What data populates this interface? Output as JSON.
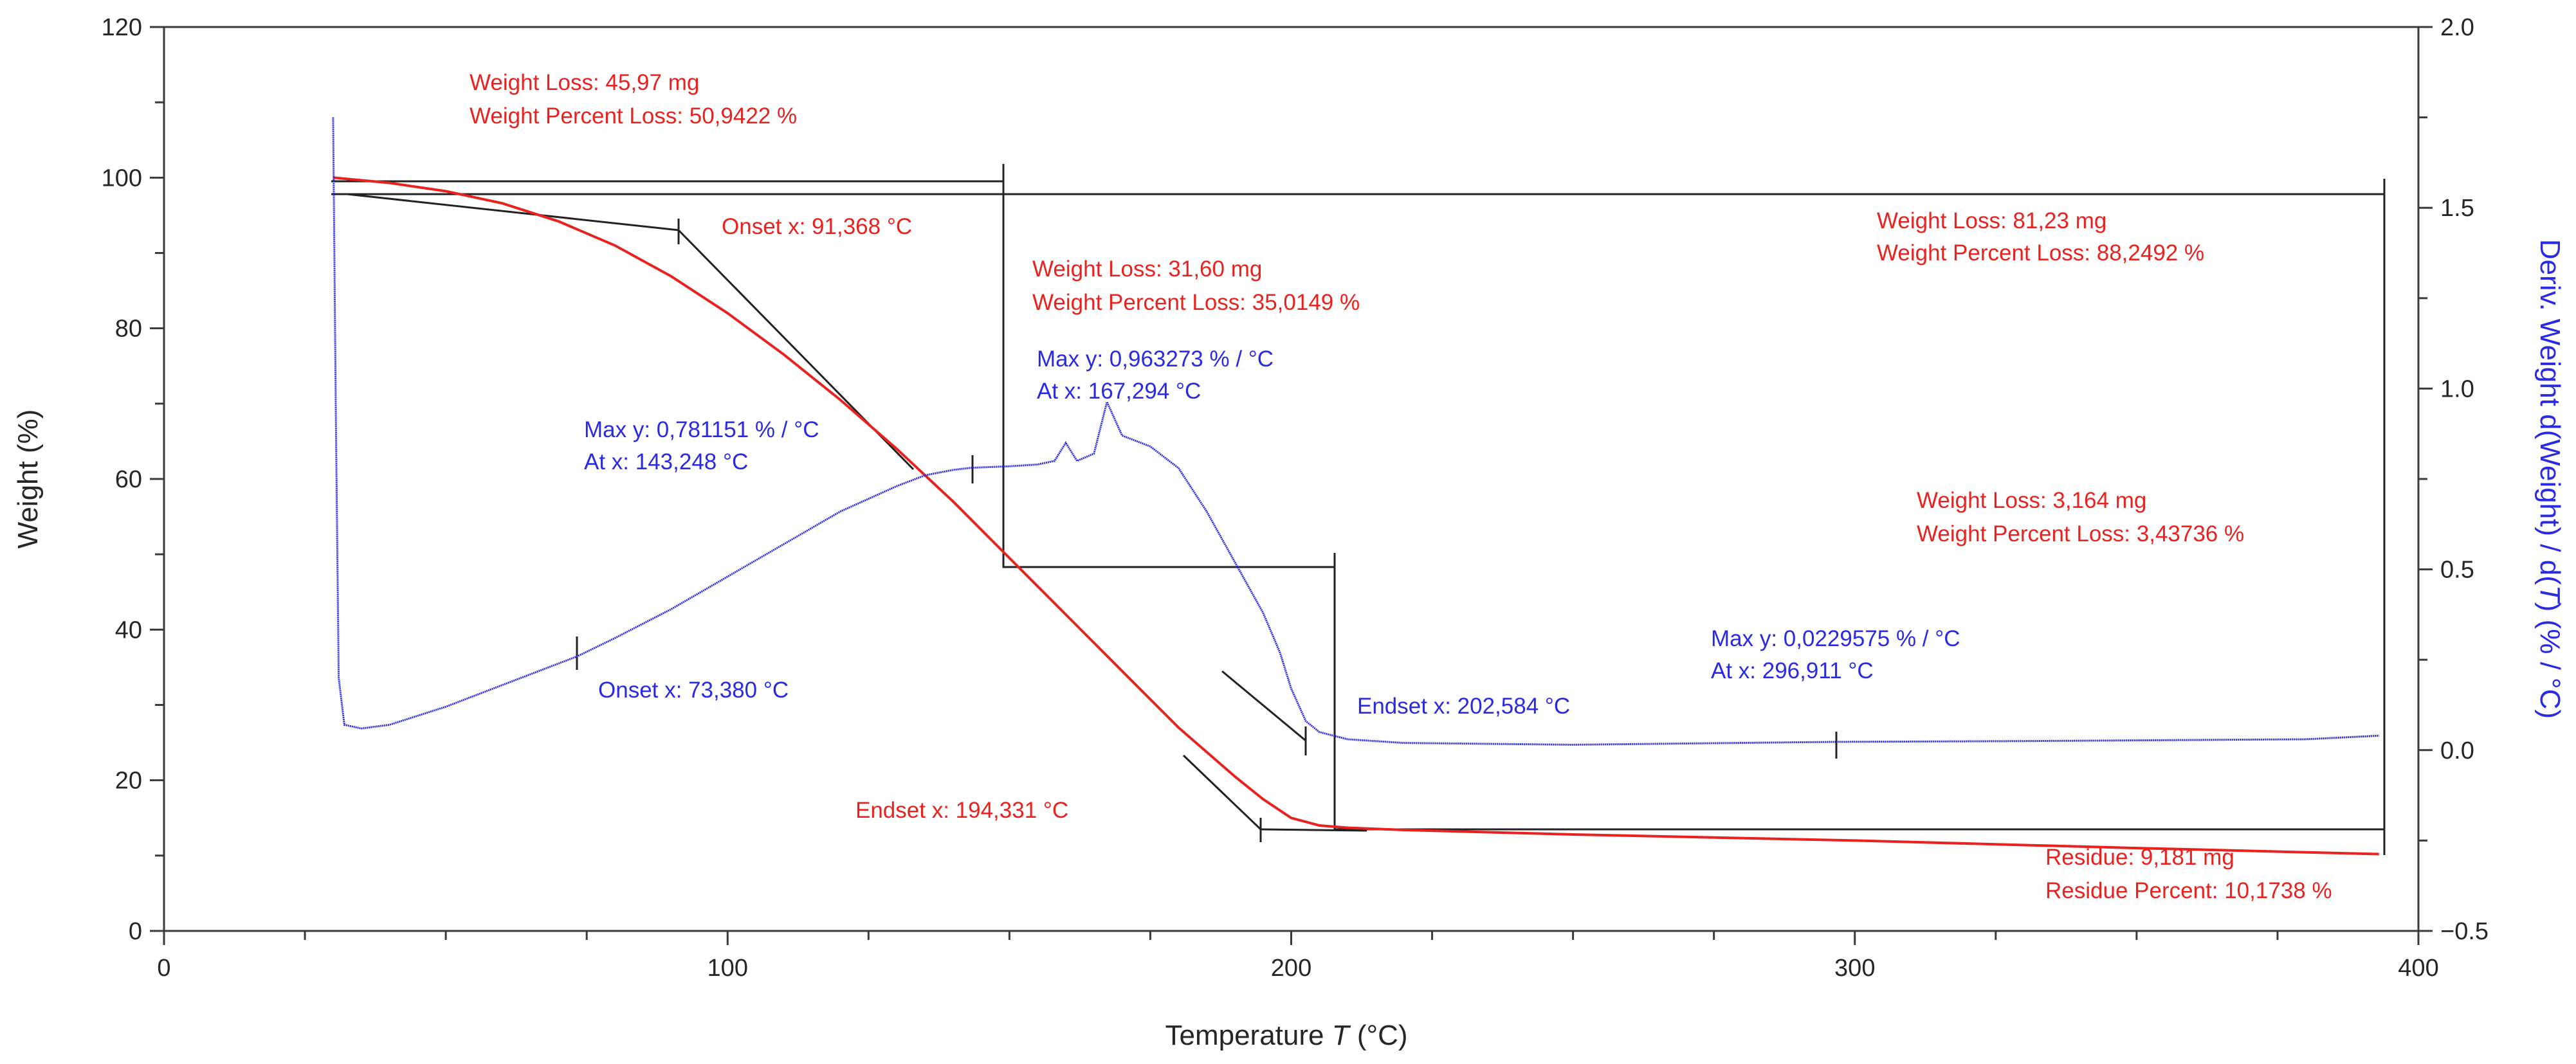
{
  "chart_data": {
    "type": "line",
    "xlabel": "Temperature T (°C)",
    "ylabel_left": "Weight (%)",
    "ylabel_right": "Deriv. Weight d(Weight) / d(T) (% / °C)",
    "xlim": [
      0,
      400
    ],
    "ylim_left": [
      0,
      120
    ],
    "ylim_right": [
      -0.5,
      2.0
    ],
    "x_ticks": [
      0,
      100,
      200,
      300,
      400
    ],
    "x_tick_labels": [
      "0",
      "100",
      "200",
      "300",
      "400"
    ],
    "y_left_ticks": [
      0,
      20,
      40,
      60,
      80,
      100,
      120
    ],
    "y_left_tick_labels": [
      "0",
      "20",
      "40",
      "60",
      "80",
      "100",
      "120"
    ],
    "y_right_ticks": [
      -0.5,
      0.0,
      0.5,
      1.0,
      1.5,
      2.0
    ],
    "y_right_tick_labels": [
      "−0.5",
      "0.0",
      "0.5",
      "1.0",
      "1.5",
      "2.0"
    ],
    "colors": {
      "weight": "#e8231f",
      "deriv": "#2a2ae0",
      "construction": "#222222",
      "axis": "#3a3a3a"
    },
    "series": [
      {
        "name": "Weight",
        "axis": "left",
        "x": [
          30,
          40,
          50,
          60,
          70,
          80,
          90,
          100,
          110,
          120,
          130,
          140,
          150,
          160,
          170,
          180,
          190,
          195,
          200,
          205,
          210,
          220,
          250,
          300,
          350,
          393
        ],
        "y": [
          100,
          99.3,
          98.2,
          96.6,
          94.2,
          91.0,
          86.9,
          82.0,
          76.5,
          70.5,
          64.0,
          57.0,
          49.5,
          42.0,
          34.5,
          27.0,
          20.5,
          17.5,
          15.0,
          14.0,
          13.7,
          13.4,
          12.8,
          12.0,
          11.0,
          10.2
        ]
      },
      {
        "name": "Deriv. Weight",
        "axis": "right",
        "x": [
          30,
          30.5,
          31,
          32,
          35,
          40,
          50,
          60,
          73.4,
          80,
          90,
          100,
          110,
          120,
          130,
          135,
          140,
          143.2,
          150,
          155,
          158,
          160,
          162,
          165,
          167.3,
          170,
          175,
          180,
          185,
          190,
          195,
          198,
          200,
          202.6,
          205,
          210,
          220,
          250,
          296.9,
          330,
          380,
          393
        ],
        "y": [
          1.75,
          0.9,
          0.2,
          0.07,
          0.06,
          0.07,
          0.12,
          0.18,
          0.26,
          0.31,
          0.39,
          0.48,
          0.57,
          0.66,
          0.73,
          0.76,
          0.775,
          0.781,
          0.785,
          0.79,
          0.8,
          0.85,
          0.8,
          0.82,
          0.963,
          0.87,
          0.84,
          0.78,
          0.66,
          0.52,
          0.38,
          0.27,
          0.17,
          0.08,
          0.05,
          0.03,
          0.02,
          0.015,
          0.023,
          0.025,
          0.03,
          0.04
        ]
      }
    ],
    "annotations": {
      "a1_line1": "Weight Loss: 45,97 mg",
      "a1_line2": "Weight Percent Loss: 50,9422 %",
      "a2": "Onset x: 91,368 °C",
      "a3_line1": "Weight Loss: 31,60 mg",
      "a3_line2": "Weight Percent Loss: 35,0149 %",
      "a4_line1": "Max y: 0,963273 % / °C",
      "a4_line2": "At x: 167,294 °C",
      "a5_line1": "Max y: 0,781151 % / °C",
      "a5_line2": "At x: 143,248 °C",
      "a6_line1": "Weight Loss: 81,23 mg",
      "a6_line2": "Weight Percent Loss: 88,2492 %",
      "a7_line1": "Weight Loss: 3,164 mg",
      "a7_line2": "Weight Percent Loss: 3,43736 %",
      "a8": "Onset x: 73,380 °C",
      "a9_line1": "Max y: 0,0229575 % / °C",
      "a9_line2": "At x: 296,911 °C",
      "a10": "Endset x: 202,584 °C",
      "a11": "Endset x: 194,331 °C",
      "a12_line1": "Residue: 9,181 mg",
      "a12_line2": "Residue Percent: 10,1738 %"
    }
  }
}
